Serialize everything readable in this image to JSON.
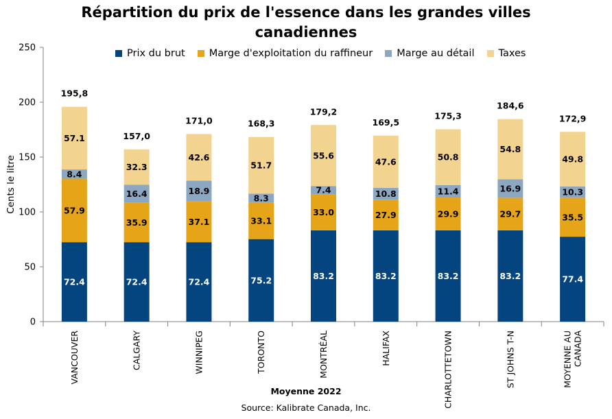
{
  "title_lines": [
    "Répartition du prix de l'essence dans les grandes villes",
    "canadiennes"
  ],
  "colors": {
    "Prix du brut": "#044580",
    "Marge d'exploitation du raffineur": "#E6A519",
    "Marge au détail": "#8CA7C2",
    "Taxes": "#F2D38F"
  },
  "source": "Source:  Kalibrate Canada, Inc.",
  "chart_data": {
    "type": "bar",
    "stacked": true,
    "title": "Répartition du prix de l'essence dans les grandes villes canadiennes",
    "xlabel": "Moyenne 2022",
    "ylabel": "Cents le litre",
    "ylim": [
      0,
      250
    ],
    "yticks": [
      0,
      50,
      100,
      150,
      200,
      250
    ],
    "grid": false,
    "legend_position": "top",
    "categories": [
      "VANCOUVER",
      "CALGARY",
      "WINNIPEG",
      "TORONTO",
      "MONTRÉAL",
      "HALIFAX",
      "CHARLOTTETOWN",
      "ST JOHNS T-N",
      "MOYENNE AU CANADA"
    ],
    "category_lines": [
      [
        "VANCOUVER"
      ],
      [
        "CALGARY"
      ],
      [
        "WINNIPEG"
      ],
      [
        "TORONTO"
      ],
      [
        "MONTRÉAL"
      ],
      [
        "HALIFAX"
      ],
      [
        "CHARLOTTETOWN"
      ],
      [
        "ST JOHNS T-N"
      ],
      [
        "MOYENNE AU",
        "CANADA"
      ]
    ],
    "series": [
      {
        "name": "Prix du brut",
        "values": [
          72.4,
          72.4,
          72.4,
          75.2,
          83.2,
          83.2,
          83.2,
          83.2,
          77.4
        ],
        "labels": [
          "72.4",
          "72.4",
          "72.4",
          "75.2",
          "83.2",
          "83.2",
          "83.2",
          "83.2",
          "77.4"
        ]
      },
      {
        "name": "Marge d'exploitation du raffineur",
        "values": [
          57.9,
          35.9,
          37.1,
          33.1,
          33.0,
          27.9,
          29.9,
          29.7,
          35.5
        ],
        "labels": [
          "57.9",
          "35.9",
          "37.1",
          "33.1",
          "33.0",
          "27.9",
          "29.9",
          "29.7",
          "35.5"
        ]
      },
      {
        "name": "Marge au détail",
        "values": [
          8.4,
          16.4,
          18.9,
          8.3,
          7.4,
          10.8,
          11.4,
          16.9,
          10.3
        ],
        "labels": [
          "8.4",
          "16.4",
          "18.9",
          "8.3",
          "7.4",
          "10.8",
          "11.4",
          "16.9",
          "10.3"
        ]
      },
      {
        "name": "Taxes",
        "values": [
          57.1,
          32.3,
          42.6,
          51.7,
          55.6,
          47.6,
          50.8,
          54.8,
          49.8
        ],
        "labels": [
          "57.1",
          "32.3",
          "42.6",
          "51.7",
          "55.6",
          "47.6",
          "50.8",
          "54.8",
          "49.8"
        ]
      }
    ],
    "totals": [
      195.8,
      157.0,
      171.0,
      168.3,
      179.2,
      169.5,
      175.3,
      184.6,
      172.9
    ],
    "total_labels": [
      "195,8",
      "157,0",
      "171,0",
      "168,3",
      "179,2",
      "169,5",
      "175,3",
      "184,6",
      "172,9"
    ]
  }
}
